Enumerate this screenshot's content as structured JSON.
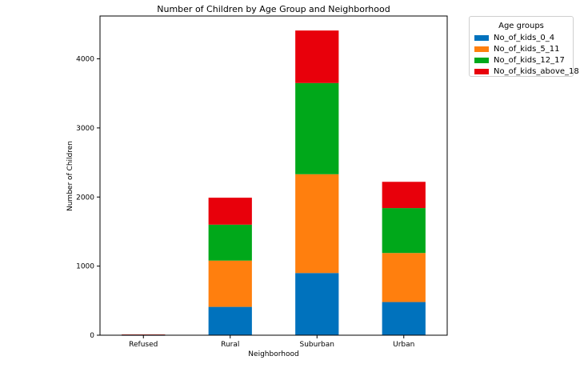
{
  "chart_data": {
    "type": "bar",
    "stacked": true,
    "title": "Number of Children by Age Group and Neighborhood",
    "xlabel": "Neighborhood",
    "ylabel": "Number of Children",
    "categories": [
      "Refused",
      "Rural",
      "Suburban",
      "Urban"
    ],
    "ylim": [
      0,
      4620
    ],
    "yticks": [
      0,
      1000,
      2000,
      3000,
      4000
    ],
    "grid": false,
    "legend": {
      "title": "Age groups",
      "placement": "outside-top-right"
    },
    "series": [
      {
        "name": "No_of_kids_0_4",
        "color": "#0072bd",
        "values": [
          2,
          410,
          900,
          480
        ]
      },
      {
        "name": "No_of_kids_5_11",
        "color": "#ff7f0e",
        "values": [
          3,
          670,
          1430,
          710
        ]
      },
      {
        "name": "No_of_kids_12_17",
        "color": "#00a81a",
        "values": [
          3,
          520,
          1320,
          650
        ]
      },
      {
        "name": "No_of_kids_above_18",
        "color": "#e8000b",
        "values": [
          2,
          390,
          760,
          380
        ]
      }
    ]
  }
}
